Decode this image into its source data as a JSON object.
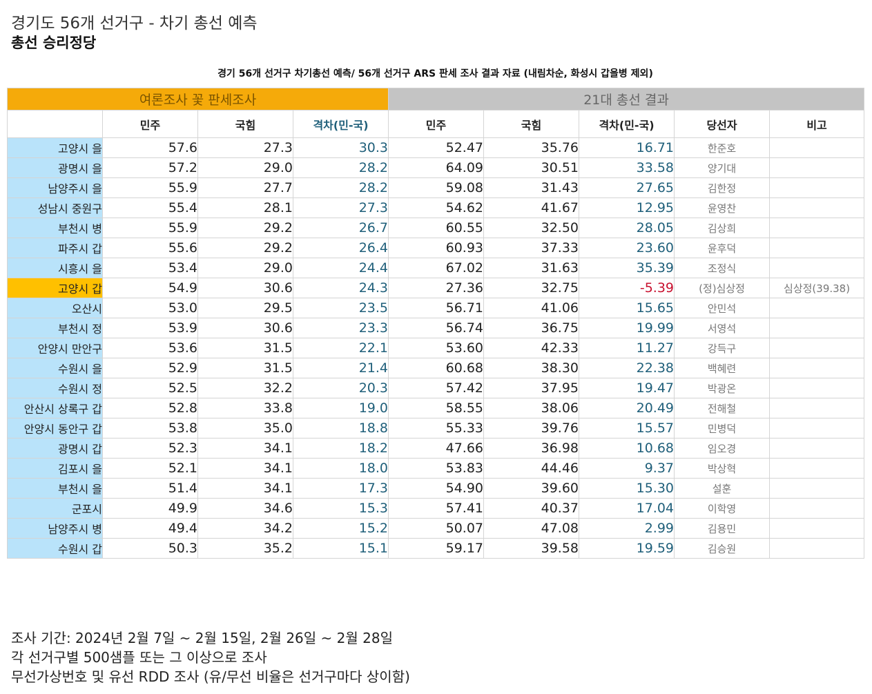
{
  "header": {
    "title": "경기도 56개 선거구 - 차기 총선 예측",
    "subtitle": "총선 승리정당"
  },
  "caption": "경기 56개 선거구 차기총선 예측/ 56개 선거구 ARS 판세 조사 결과 자료 (내림차순, 화성시 갑을병 제외)",
  "table": {
    "group_headers": {
      "survey": "여론조사 꽃 판세조사",
      "result": "21대 총선 결과"
    },
    "columns": [
      "민주",
      "국힘",
      "격차(민-국)",
      "민주",
      "국힘",
      "격차(민-국)",
      "당선자",
      "비고"
    ],
    "highlight_color": "#ffc000",
    "district_color": "#b9e3fa",
    "rows": [
      {
        "district": "고양시 을",
        "s_dem": "57.6",
        "s_ppp": "27.3",
        "s_gap": "30.3",
        "r_dem": "52.47",
        "r_ppp": "35.76",
        "r_gap": "16.71",
        "winner": "한준호",
        "note": ""
      },
      {
        "district": "광명시 을",
        "s_dem": "57.2",
        "s_ppp": "29.0",
        "s_gap": "28.2",
        "r_dem": "64.09",
        "r_ppp": "30.51",
        "r_gap": "33.58",
        "winner": "양기대",
        "note": ""
      },
      {
        "district": "남양주시 을",
        "s_dem": "55.9",
        "s_ppp": "27.7",
        "s_gap": "28.2",
        "r_dem": "59.08",
        "r_ppp": "31.43",
        "r_gap": "27.65",
        "winner": "김한정",
        "note": ""
      },
      {
        "district": "성남시 중원구",
        "s_dem": "55.4",
        "s_ppp": "28.1",
        "s_gap": "27.3",
        "r_dem": "54.62",
        "r_ppp": "41.67",
        "r_gap": "12.95",
        "winner": "윤영찬",
        "note": ""
      },
      {
        "district": "부천시 병",
        "s_dem": "55.9",
        "s_ppp": "29.2",
        "s_gap": "26.7",
        "r_dem": "60.55",
        "r_ppp": "32.50",
        "r_gap": "28.05",
        "winner": "김상희",
        "note": ""
      },
      {
        "district": "파주시 갑",
        "s_dem": "55.6",
        "s_ppp": "29.2",
        "s_gap": "26.4",
        "r_dem": "60.93",
        "r_ppp": "37.33",
        "r_gap": "23.60",
        "winner": "윤후덕",
        "note": ""
      },
      {
        "district": "시흥시 을",
        "s_dem": "53.4",
        "s_ppp": "29.0",
        "s_gap": "24.4",
        "r_dem": "67.02",
        "r_ppp": "31.63",
        "r_gap": "35.39",
        "winner": "조정식",
        "note": ""
      },
      {
        "district": "고양시 갑",
        "s_dem": "54.9",
        "s_ppp": "30.6",
        "s_gap": "24.3",
        "r_dem": "27.36",
        "r_ppp": "32.75",
        "r_gap": "-5.39",
        "winner": "(정)심상정",
        "note": "심상정(39.38)",
        "highlight": true,
        "negative": true
      },
      {
        "district": "오산시",
        "s_dem": "53.0",
        "s_ppp": "29.5",
        "s_gap": "23.5",
        "r_dem": "56.71",
        "r_ppp": "41.06",
        "r_gap": "15.65",
        "winner": "안민석",
        "note": ""
      },
      {
        "district": "부천시 정",
        "s_dem": "53.9",
        "s_ppp": "30.6",
        "s_gap": "23.3",
        "r_dem": "56.74",
        "r_ppp": "36.75",
        "r_gap": "19.99",
        "winner": "서영석",
        "note": ""
      },
      {
        "district": "안양시 만안구",
        "s_dem": "53.6",
        "s_ppp": "31.5",
        "s_gap": "22.1",
        "r_dem": "53.60",
        "r_ppp": "42.33",
        "r_gap": "11.27",
        "winner": "강득구",
        "note": ""
      },
      {
        "district": "수원시 을",
        "s_dem": "52.9",
        "s_ppp": "31.5",
        "s_gap": "21.4",
        "r_dem": "60.68",
        "r_ppp": "38.30",
        "r_gap": "22.38",
        "winner": "백혜련",
        "note": ""
      },
      {
        "district": "수원시 정",
        "s_dem": "52.5",
        "s_ppp": "32.2",
        "s_gap": "20.3",
        "r_dem": "57.42",
        "r_ppp": "37.95",
        "r_gap": "19.47",
        "winner": "박광온",
        "note": ""
      },
      {
        "district": "안산시 상록구 갑",
        "s_dem": "52.8",
        "s_ppp": "33.8",
        "s_gap": "19.0",
        "r_dem": "58.55",
        "r_ppp": "38.06",
        "r_gap": "20.49",
        "winner": "전해철",
        "note": ""
      },
      {
        "district": "안양시 동안구 갑",
        "s_dem": "53.8",
        "s_ppp": "35.0",
        "s_gap": "18.8",
        "r_dem": "55.33",
        "r_ppp": "39.76",
        "r_gap": "15.57",
        "winner": "민병덕",
        "note": ""
      },
      {
        "district": "광명시 갑",
        "s_dem": "52.3",
        "s_ppp": "34.1",
        "s_gap": "18.2",
        "r_dem": "47.66",
        "r_ppp": "36.98",
        "r_gap": "10.68",
        "winner": "임오경",
        "note": ""
      },
      {
        "district": "김포시 을",
        "s_dem": "52.1",
        "s_ppp": "34.1",
        "s_gap": "18.0",
        "r_dem": "53.83",
        "r_ppp": "44.46",
        "r_gap": "9.37",
        "winner": "박상혁",
        "note": ""
      },
      {
        "district": "부천시 을",
        "s_dem": "51.4",
        "s_ppp": "34.1",
        "s_gap": "17.3",
        "r_dem": "54.90",
        "r_ppp": "39.60",
        "r_gap": "15.30",
        "winner": "설훈",
        "note": ""
      },
      {
        "district": "군포시",
        "s_dem": "49.9",
        "s_ppp": "34.6",
        "s_gap": "15.3",
        "r_dem": "57.41",
        "r_ppp": "40.37",
        "r_gap": "17.04",
        "winner": "이학영",
        "note": ""
      },
      {
        "district": "남양주시 병",
        "s_dem": "49.4",
        "s_ppp": "34.2",
        "s_gap": "15.2",
        "r_dem": "50.07",
        "r_ppp": "47.08",
        "r_gap": "2.99",
        "winner": "김용민",
        "note": ""
      },
      {
        "district": "수원시 갑",
        "s_dem": "50.3",
        "s_ppp": "35.2",
        "s_gap": "15.1",
        "r_dem": "59.17",
        "r_ppp": "39.58",
        "r_gap": "19.59",
        "winner": "김승원",
        "note": ""
      }
    ]
  },
  "notes": [
    "조사 기간: 2024년 2월 7일 ~ 2월 15일, 2월 26일 ~ 2월 28일",
    "각 선거구별 500샘플 또는 그 이상으로 조사",
    "무선가상번호 및 유선 RDD 조사 (유/무선 비율은 선거구마다 상이함)"
  ]
}
